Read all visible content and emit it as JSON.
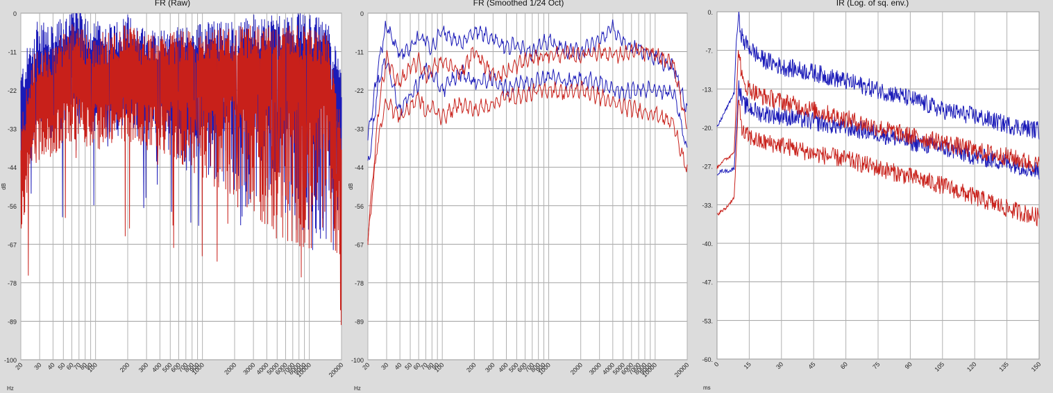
{
  "chart_data": [
    {
      "type": "line",
      "title": "FR (Raw)",
      "xlabel": "Hz",
      "ylabel": "dB",
      "xscale": "log",
      "xlim": [
        20,
        20000
      ],
      "ylim": [
        -100,
        0
      ],
      "yticks": [
        "0",
        "-11",
        "-22",
        "-33",
        "-44",
        "-56",
        "-67",
        "-78",
        "-89",
        "-100"
      ],
      "xticks": [
        "20",
        "30",
        "40",
        "50",
        "60",
        "70",
        "80",
        "90",
        "100",
        "200",
        "300",
        "400",
        "500",
        "600",
        "700",
        "800",
        "900",
        "1000",
        "2000",
        "3000",
        "4000",
        "5000",
        "6000",
        "7000",
        "8000",
        "9000",
        "10000",
        "20000"
      ],
      "grid": true,
      "colors": [
        "#1a1ab8",
        "#c8201a"
      ],
      "series": [
        {
          "color": "#1a1ab8",
          "x": [
            20,
            25,
            30,
            40,
            50,
            60,
            70,
            80,
            100,
            150,
            200,
            300,
            400,
            500,
            700,
            1000,
            2000,
            3000,
            4000,
            5000,
            7000,
            10000,
            15000,
            20000
          ],
          "y": [
            -30,
            -20,
            -15,
            -18,
            -14,
            -12,
            -12,
            -14,
            -16,
            -16,
            -14,
            -18,
            -18,
            -18,
            -18,
            -16,
            -16,
            -14,
            -15,
            -14,
            -14,
            -14,
            -16,
            -30
          ]
        },
        {
          "color": "#c8201a",
          "x": [
            20,
            25,
            30,
            40,
            50,
            60,
            70,
            80,
            100,
            150,
            200,
            300,
            400,
            500,
            700,
            1000,
            2000,
            3000,
            4000,
            5000,
            7000,
            10000,
            15000,
            20000
          ],
          "y": [
            -45,
            -28,
            -22,
            -23,
            -20,
            -17,
            -17,
            -19,
            -20,
            -18,
            -17,
            -20,
            -20,
            -19,
            -19,
            -18,
            -18,
            -17,
            -18,
            -18,
            -17,
            -18,
            -20,
            -45
          ]
        }
      ]
    },
    {
      "type": "line",
      "title": "FR (Smoothed 1/24 Oct)",
      "xlabel": "Hz",
      "ylabel": "dB",
      "xscale": "log",
      "xlim": [
        20,
        20000
      ],
      "ylim": [
        -100,
        0
      ],
      "yticks": [
        "0",
        "-11",
        "-22",
        "-33",
        "-44",
        "-56",
        "-67",
        "-78",
        "-89",
        "-100"
      ],
      "xticks": [
        "20",
        "30",
        "40",
        "50",
        "60",
        "70",
        "80",
        "90",
        "100",
        "200",
        "300",
        "400",
        "500",
        "600",
        "700",
        "800",
        "900",
        "1000",
        "2000",
        "3000",
        "4000",
        "5000",
        "6000",
        "7000",
        "8000",
        "9000",
        "10000",
        "20000"
      ],
      "grid": true,
      "colors": [
        "#1a1ab8",
        "#c8201a"
      ],
      "series": [
        {
          "color": "#1a1ab8",
          "x": [
            20,
            22,
            25,
            30,
            35,
            40,
            50,
            60,
            70,
            80,
            100,
            150,
            200,
            300,
            400,
            500,
            700,
            1000,
            1500,
            2000,
            3000,
            4000,
            5000,
            7000,
            10000,
            15000,
            20000
          ],
          "y": [
            -36,
            -28,
            -15,
            -3,
            -8,
            -12,
            -10,
            -7,
            -8,
            -10,
            -5,
            -9,
            -5,
            -7,
            -10,
            -9,
            -11,
            -8,
            -11,
            -11,
            -8,
            -4,
            -9,
            -10,
            -13,
            -16,
            -28
          ]
        },
        {
          "color": "#1a1ab8",
          "x": [
            20,
            22,
            25,
            30,
            35,
            40,
            50,
            60,
            70,
            80,
            100,
            150,
            200,
            300,
            400,
            500,
            700,
            1000,
            1500,
            2000,
            3000,
            4000,
            5000,
            7000,
            10000,
            15000,
            20000
          ],
          "y": [
            -44,
            -35,
            -20,
            -13,
            -22,
            -28,
            -24,
            -20,
            -16,
            -18,
            -22,
            -17,
            -20,
            -19,
            -22,
            -20,
            -20,
            -18,
            -20,
            -19,
            -20,
            -22,
            -23,
            -22,
            -22,
            -23,
            -40
          ]
        },
        {
          "color": "#c8201a",
          "x": [
            20,
            22,
            25,
            30,
            35,
            40,
            50,
            60,
            70,
            80,
            100,
            150,
            200,
            300,
            400,
            500,
            700,
            1000,
            1500,
            2000,
            3000,
            4000,
            5000,
            7000,
            10000,
            15000,
            20000
          ],
          "y": [
            -64,
            -50,
            -28,
            -13,
            -18,
            -20,
            -16,
            -14,
            -18,
            -16,
            -14,
            -17,
            -11,
            -18,
            -17,
            -15,
            -13,
            -12,
            -12,
            -12,
            -11,
            -12,
            -12,
            -11,
            -12,
            -15,
            -33
          ]
        },
        {
          "color": "#c8201a",
          "x": [
            20,
            22,
            25,
            30,
            35,
            40,
            50,
            60,
            70,
            80,
            100,
            150,
            200,
            300,
            400,
            500,
            700,
            1000,
            1500,
            2000,
            3000,
            4000,
            5000,
            7000,
            10000,
            15000,
            20000
          ],
          "y": [
            -67,
            -52,
            -36,
            -25,
            -28,
            -30,
            -27,
            -24,
            -29,
            -27,
            -30,
            -26,
            -28,
            -26,
            -24,
            -24,
            -23,
            -22,
            -23,
            -22,
            -24,
            -26,
            -27,
            -28,
            -29,
            -32,
            -46
          ]
        }
      ]
    },
    {
      "type": "line",
      "title": "IR (Log. of sq. env.)",
      "xlabel": "ms",
      "xlim": [
        0,
        150
      ],
      "ylim": [
        -60,
        0
      ],
      "yticks": [
        "0.",
        "-7.",
        "-13.",
        "-20.",
        "-27.",
        "-33.",
        "-40.",
        "-47.",
        "-53.",
        "-60."
      ],
      "xticks": [
        "0",
        "15",
        "30",
        "45",
        "60",
        "75",
        "90",
        "105",
        "120",
        "135",
        "150"
      ],
      "grid": true,
      "colors": [
        "#1a1ab8",
        "#c8201a"
      ],
      "series": [
        {
          "color": "#1a1ab8",
          "x": [
            0,
            2,
            4,
            6,
            8,
            9,
            10,
            12,
            20,
            30,
            45,
            60,
            75,
            90,
            105,
            120,
            135,
            150
          ],
          "y": [
            -20,
            -18.5,
            -17,
            -15.5,
            -14,
            -5,
            -1,
            -5,
            -8,
            -9.5,
            -10.5,
            -12,
            -13.5,
            -15,
            -17,
            -18,
            -19.5,
            -20.5
          ]
        },
        {
          "color": "#1a1ab8",
          "x": [
            0,
            2,
            4,
            6,
            8,
            9,
            10,
            12,
            20,
            30,
            45,
            60,
            75,
            90,
            105,
            120,
            135,
            150
          ],
          "y": [
            -28,
            -27.5,
            -27.5,
            -27.5,
            -27,
            -20,
            -13,
            -16,
            -17.5,
            -18,
            -19,
            -20,
            -21,
            -22.5,
            -23.5,
            -25,
            -26,
            -27.5
          ]
        },
        {
          "color": "#c8201a",
          "x": [
            0,
            2,
            4,
            6,
            8,
            9,
            10,
            12,
            20,
            30,
            45,
            60,
            75,
            90,
            105,
            120,
            135,
            150
          ],
          "y": [
            -27,
            -26,
            -25.5,
            -25,
            -24,
            -15,
            -6,
            -12.5,
            -14.5,
            -15.5,
            -17,
            -18.5,
            -20,
            -21.5,
            -22.5,
            -24,
            -25,
            -26.5
          ]
        },
        {
          "color": "#c8201a",
          "x": [
            0,
            2,
            4,
            6,
            8,
            9,
            10,
            12,
            20,
            30,
            45,
            60,
            75,
            90,
            105,
            120,
            135,
            150
          ],
          "y": [
            -35,
            -34.5,
            -34,
            -33,
            -32,
            -24,
            -15,
            -21,
            -22.5,
            -23,
            -24.5,
            -25.5,
            -27,
            -28.5,
            -30,
            -32,
            -34,
            -35.5
          ]
        }
      ]
    }
  ]
}
